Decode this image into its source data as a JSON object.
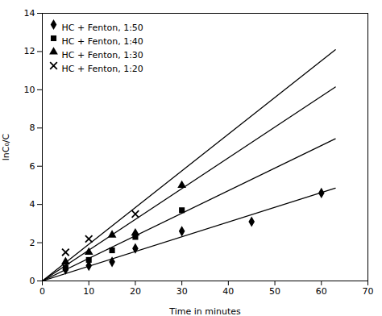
{
  "chart_data": {
    "type": "scatter",
    "xlabel": "Time in minutes",
    "ylabel": "lnC₀/C",
    "xlim": [
      0,
      70
    ],
    "ylim": [
      0,
      14
    ],
    "xticks": [
      0,
      10,
      20,
      30,
      40,
      50,
      60,
      70
    ],
    "yticks": [
      0,
      2,
      4,
      6,
      8,
      10,
      12,
      14
    ],
    "grid": false,
    "legend": "upper left",
    "series": [
      {
        "name": "HC + Fenton, 1:50",
        "type": "scatter",
        "marker": "diamond",
        "color": "#000000",
        "x": [
          5,
          10,
          15,
          20,
          30,
          45,
          60
        ],
        "values": [
          0.6,
          0.8,
          1.0,
          1.7,
          2.6,
          3.1,
          4.6
        ],
        "trend_line": {
          "x": [
            0,
            63
          ],
          "values": [
            0,
            4.851
          ]
        }
      },
      {
        "name": "HC + Fenton, 1:40",
        "type": "scatter",
        "marker": "square",
        "color": "#000000",
        "x": [
          5,
          10,
          15,
          20,
          30
        ],
        "values": [
          0.7,
          1.1,
          1.6,
          2.3,
          3.7
        ],
        "trend_line": {
          "x": [
            0,
            63
          ],
          "values": [
            0,
            10.143
          ]
        }
      },
      {
        "name": "HC + Fenton, 1:30",
        "type": "scatter",
        "marker": "triangle",
        "color": "#000000",
        "x": [
          5,
          10,
          15,
          20,
          30
        ],
        "values": [
          1.0,
          1.5,
          2.4,
          2.5,
          5.0
        ],
        "trend_line": {
          "x": [
            0,
            63
          ],
          "values": [
            0,
            12.096
          ]
        }
      },
      {
        "name": "HC + Fenton, 1:20",
        "type": "scatter",
        "marker": "x",
        "color": "#000000",
        "x": [
          5,
          10,
          20
        ],
        "values": [
          1.5,
          2.2,
          3.5
        ],
        "trend_line": {
          "x": [
            0,
            63
          ],
          "values": [
            0,
            7.434
          ]
        }
      }
    ]
  }
}
